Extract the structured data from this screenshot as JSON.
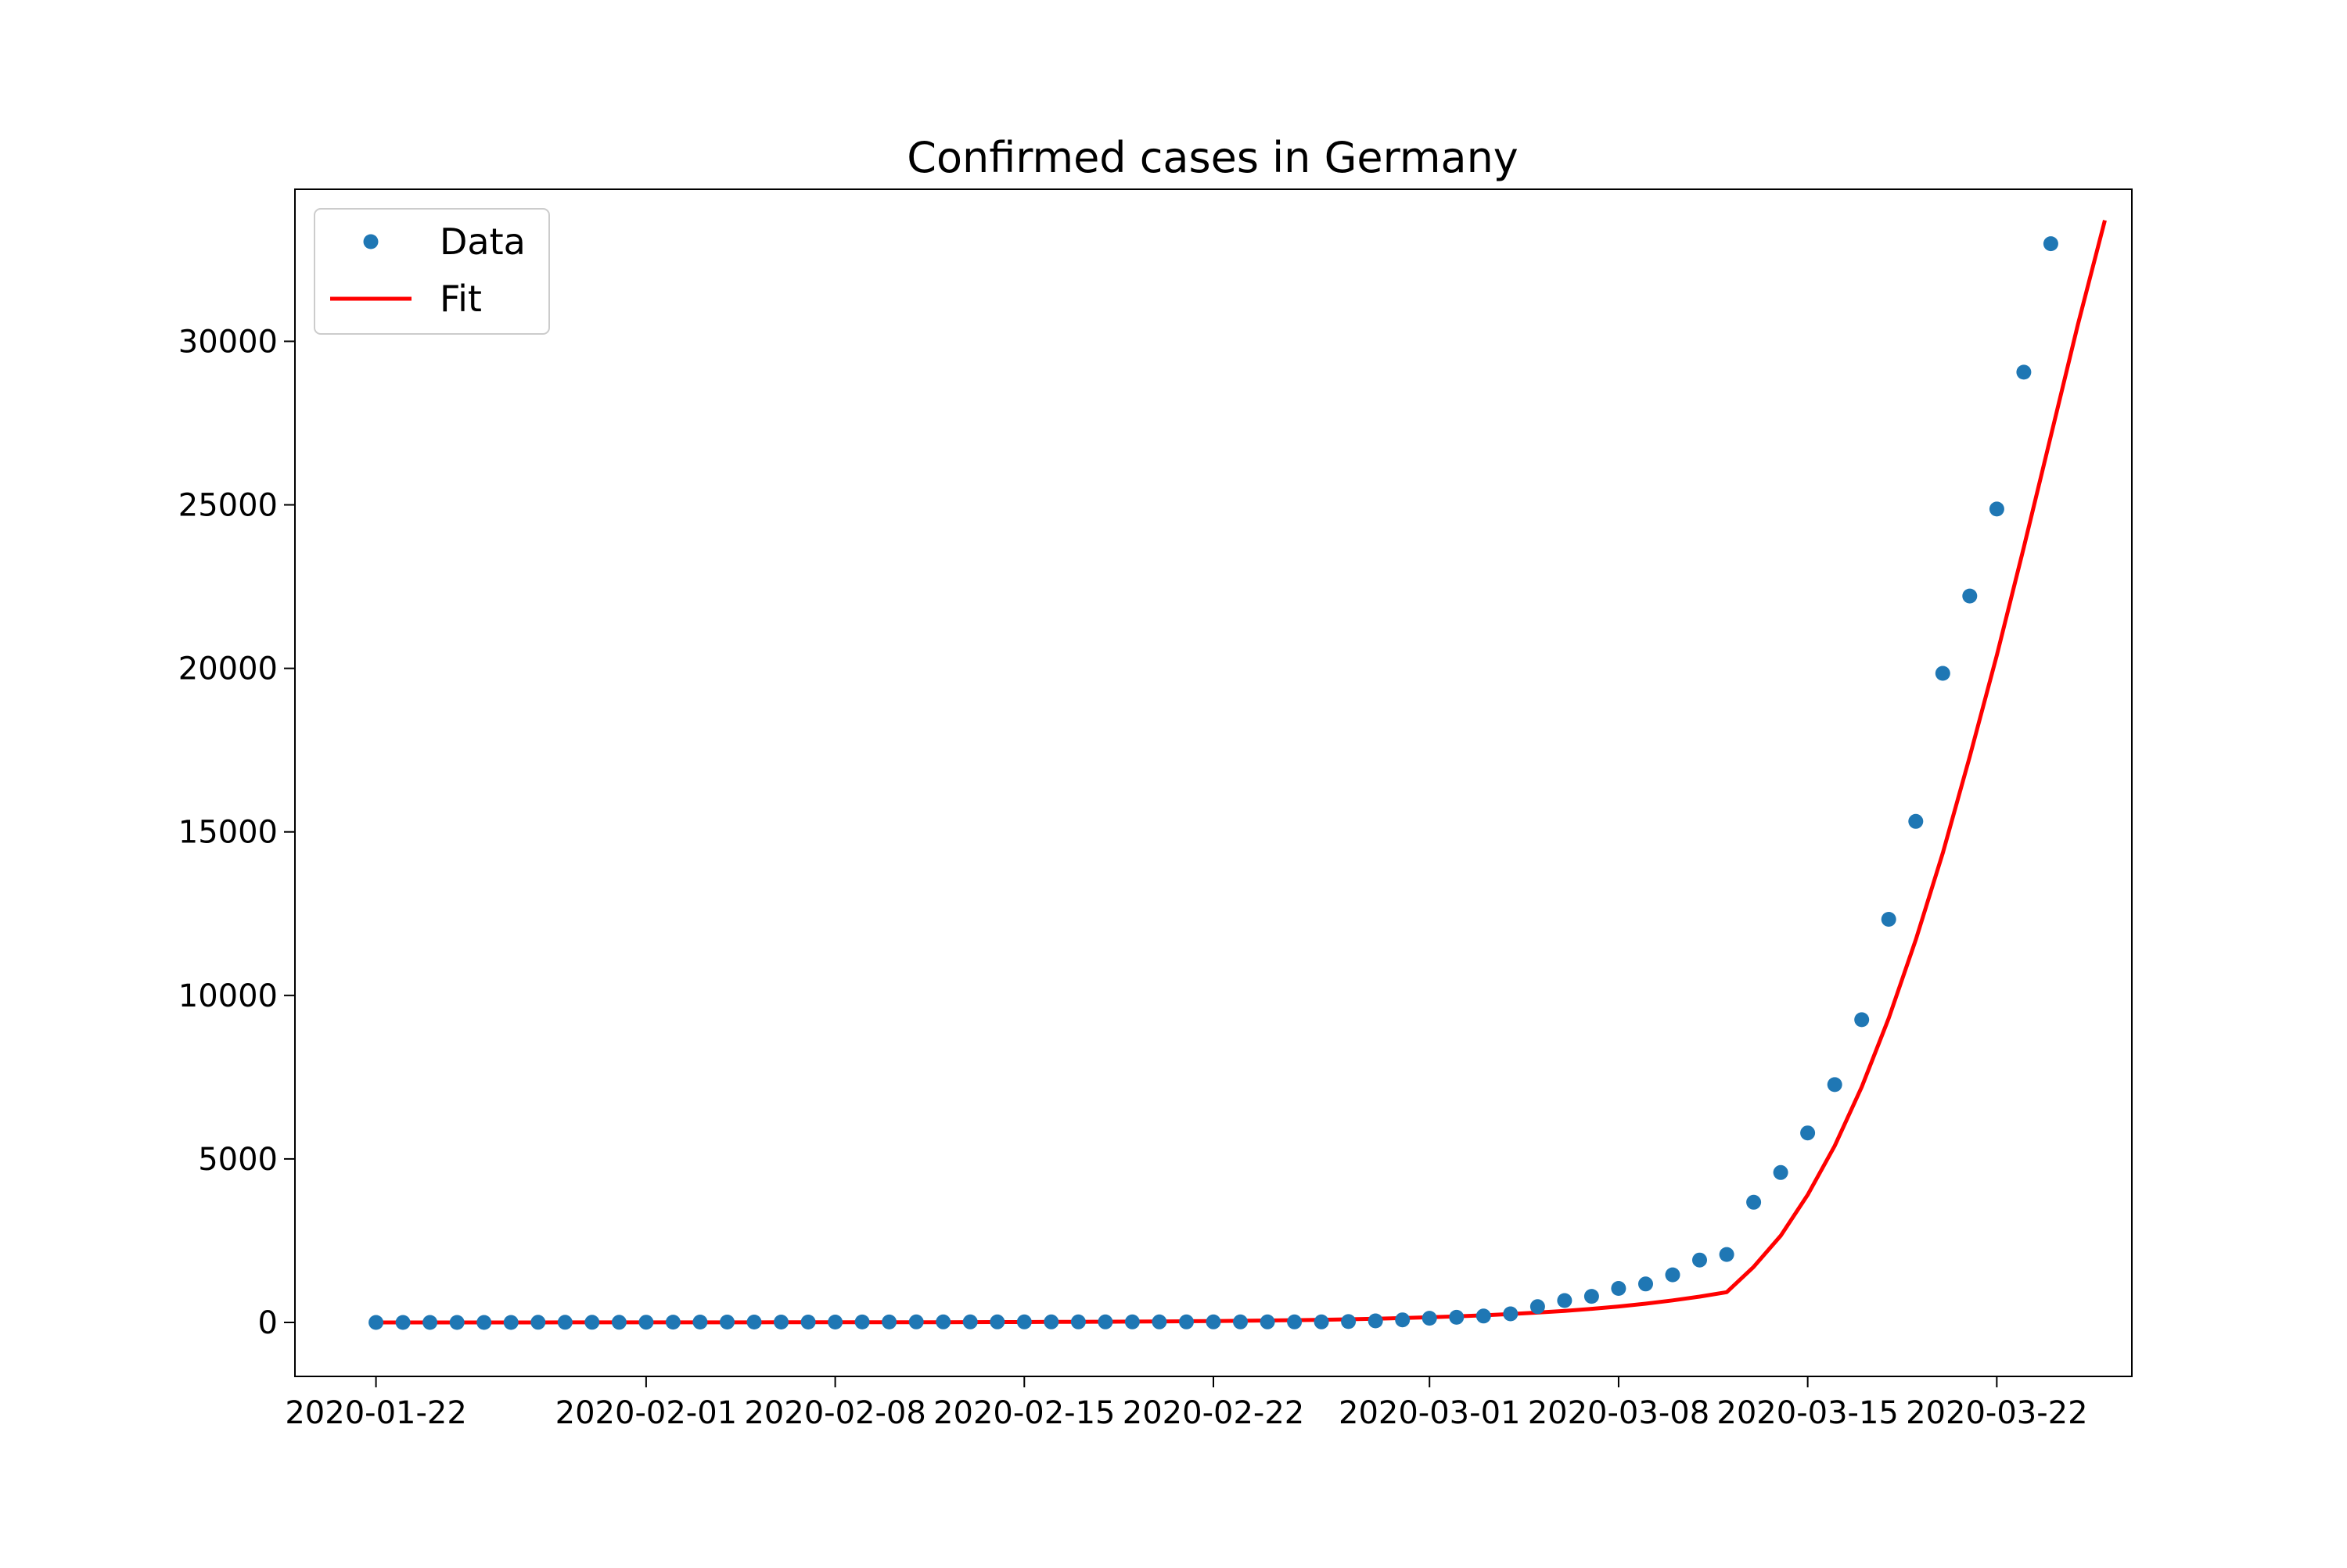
{
  "chart_data": {
    "type": "line",
    "title": "Confirmed cases in Germany",
    "xlabel": "",
    "ylabel": "",
    "x_start": "2020-01-22",
    "xlim": [
      "2020-01-19",
      "2020-03-27"
    ],
    "ylim": [
      -1650,
      34650
    ],
    "x_ticks": [
      "2020-01-22",
      "2020-02-01",
      "2020-02-08",
      "2020-02-15",
      "2020-02-22",
      "2020-03-01",
      "2020-03-08",
      "2020-03-15",
      "2020-03-22"
    ],
    "y_ticks": [
      0,
      5000,
      10000,
      15000,
      20000,
      25000,
      30000
    ],
    "grid": false,
    "legend_position": "top-left",
    "series": [
      {
        "name": "Data",
        "kind": "markers",
        "color": "#1f77b4",
        "values": [
          0,
          0,
          0,
          0,
          0,
          1,
          4,
          4,
          4,
          5,
          8,
          10,
          12,
          12,
          12,
          12,
          13,
          13,
          14,
          14,
          16,
          16,
          16,
          16,
          16,
          16,
          16,
          16,
          16,
          16,
          16,
          16,
          16,
          16,
          16,
          16,
          26,
          48,
          79,
          130,
          159,
          196,
          262,
          482,
          670,
          799,
          1040,
          1176,
          1457,
          1908,
          2078,
          3675,
          4585,
          5795,
          7272,
          9257,
          12327,
          15320,
          19848,
          22213,
          24873,
          29056,
          32986
        ]
      },
      {
        "name": "Fit",
        "kind": "line",
        "color": "#ff0000",
        "values": [
          1,
          1,
          1,
          1,
          1,
          1,
          1,
          2,
          2,
          2,
          2,
          2,
          3,
          3,
          3,
          4,
          4,
          5,
          5,
          6,
          7,
          8,
          10,
          11,
          13,
          16,
          18,
          22,
          26,
          30,
          36,
          42,
          50,
          59,
          69,
          81,
          96,
          113,
          133,
          157,
          184,
          217,
          256,
          301,
          354,
          416,
          489,
          574,
          674,
          790,
          925,
          1700,
          2650,
          3900,
          5400,
          7200,
          9300,
          11700,
          14350,
          17300,
          20400,
          23700,
          27100,
          30500,
          33700
        ]
      }
    ]
  }
}
